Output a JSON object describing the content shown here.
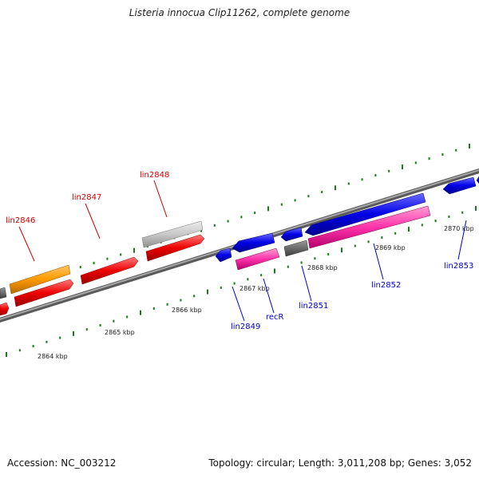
{
  "title": "Listeria innocua Clip11262, complete genome",
  "footer": {
    "accession": "Accession: NC_003212",
    "topology": "Topology: circular; Length: 3,011,208 bp; Genes: 3,052"
  },
  "colors": {
    "background": "#ffffff",
    "backbone": "#8a8a8a",
    "tick": "#1a7a1a",
    "strand_plus_label": "#0000cc",
    "strand_minus_label": "#cc0000",
    "gene_blue": "#0000e6",
    "gene_red": "#ee0000",
    "gene_pink": "#ff33aa",
    "gene_orange": "#ff9900",
    "gene_gray_light": "#c8c8c8",
    "gene_gray_dark": "#6b6b6b"
  },
  "scale_labels": [
    "2864 kbp",
    "2865 kbp",
    "2866 kbp",
    "2867 kbp",
    "2868 kbp",
    "2869 kbp",
    "2870 kbp"
  ],
  "gene_labels": {
    "lin2846": "lin2846",
    "lin2847": "lin2847",
    "lin2848": "lin2848",
    "lin2849": "lin2849",
    "recR": "recR",
    "lin2851": "lin2851",
    "lin2852": "lin2852",
    "lin2853": "lin2853"
  }
}
